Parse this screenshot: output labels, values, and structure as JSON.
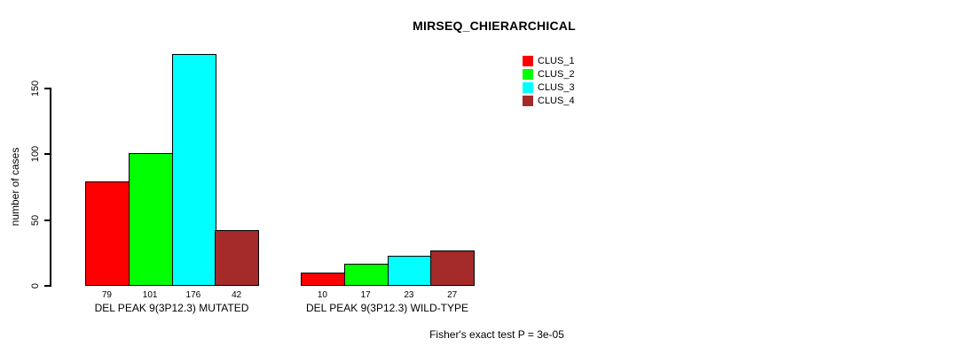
{
  "chart_data": {
    "type": "bar",
    "title": "MIRSEQ_CHIERARCHICAL",
    "ylabel": "number of cases",
    "xlabel": "",
    "yticks": [
      0,
      50,
      100,
      150
    ],
    "ylim": [
      0,
      180
    ],
    "grid": false,
    "legend_position": "top-right",
    "categories": [
      "DEL PEAK 9(3P12.3) MUTATED",
      "DEL PEAK 9(3P12.3) WILD-TYPE"
    ],
    "series": [
      {
        "name": "CLUS_1",
        "color": "#ff0000",
        "values": [
          79,
          10
        ]
      },
      {
        "name": "CLUS_2",
        "color": "#00ff00",
        "values": [
          101,
          17
        ]
      },
      {
        "name": "CLUS_3",
        "color": "#00ffff",
        "values": [
          176,
          23
        ]
      },
      {
        "name": "CLUS_4",
        "color": "#a52a2a",
        "values": [
          42,
          27
        ]
      }
    ],
    "bar_value_labels": [
      [
        79,
        101,
        176,
        42
      ],
      [
        10,
        17,
        23,
        27
      ]
    ],
    "annotation": "Fisher's exact test P = 3e-05"
  },
  "colors": {
    "axis": "#000000",
    "background": "#ffffff",
    "text": "#000000"
  }
}
